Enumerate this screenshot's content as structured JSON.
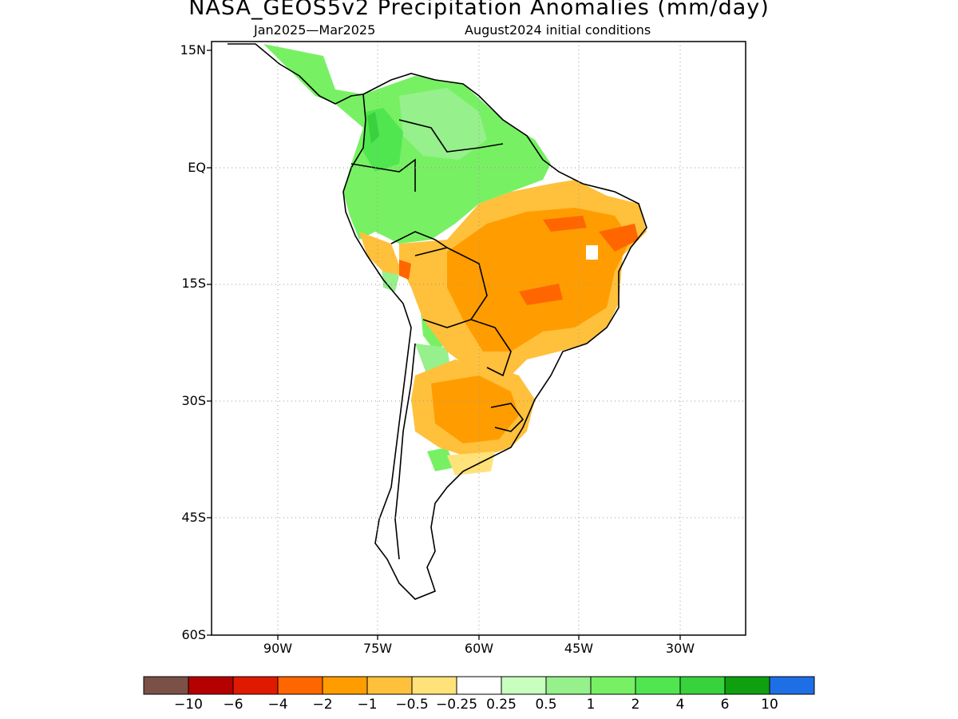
{
  "title": "NASA_GEOS5v2 Precipitation Anomalies (mm/day)",
  "subtitle_left": "Jan2025—Mar2025",
  "subtitle_right": "August2024 initial conditions",
  "axes": {
    "lat_ticks": [
      "15N",
      "EQ",
      "15S",
      "30S",
      "45S",
      "60S"
    ],
    "lon_ticks": [
      "90W",
      "75W",
      "60W",
      "45W",
      "30W"
    ],
    "lon_range": [
      "100W",
      "20W"
    ],
    "lat_range": [
      "15N",
      "60S"
    ],
    "grid": "dotted"
  },
  "colorbar": {
    "colors": [
      "#7a5047",
      "#b50000",
      "#e01a00",
      "#ff6600",
      "#ff9d00",
      "#ffc03c",
      "#ffe27a",
      "#ffffff",
      "#c8ffbe",
      "#96f08c",
      "#78f064",
      "#50e650",
      "#37d23c",
      "#0fa00f",
      "#1e6ee6"
    ],
    "labels": [
      "−10",
      "−6",
      "−4",
      "−2",
      "−1",
      "−0.5",
      "−0.25",
      "0.25",
      "0.5",
      "1",
      "2",
      "4",
      "6",
      "10"
    ]
  },
  "regions": {
    "wet_north": "Colombia, Venezuela, western Amazon: positive anomalies (green)",
    "dry_east": "Eastern and central Brazil: negative anomalies (orange)",
    "dry_south": "Northern Argentina, Paraguay, Uruguay: negative anomalies (orange)"
  }
}
